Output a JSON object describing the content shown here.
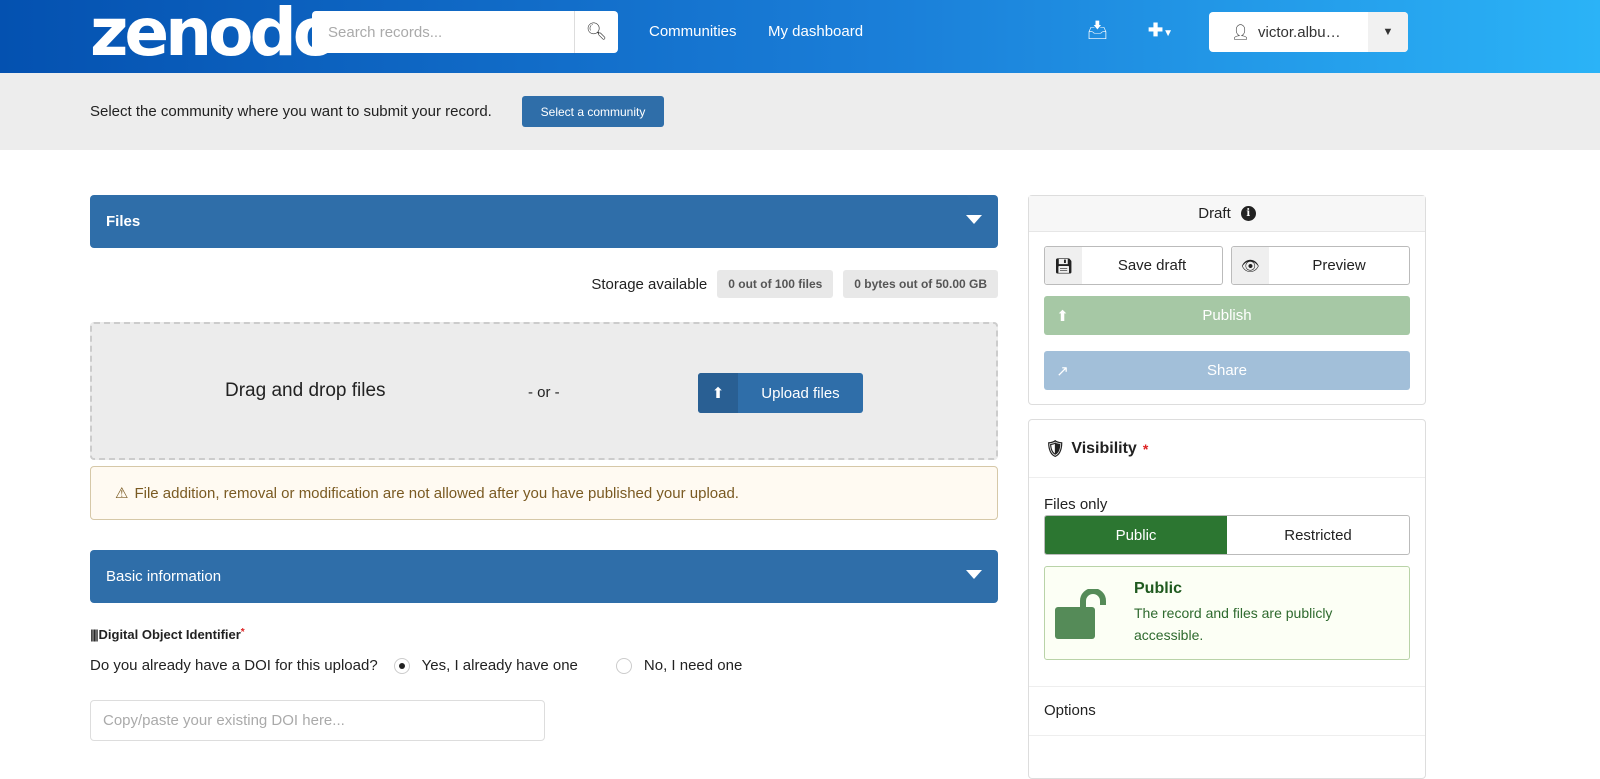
{
  "nav": {
    "logo": "zenodo",
    "search_placeholder": "Search records...",
    "links": [
      "Communities",
      "My dashboard"
    ],
    "user": "victor.albu…",
    "icons": [
      "search-icon",
      "inbox-icon",
      "plus-icon",
      "user-icon",
      "caret-down-icon"
    ]
  },
  "community": {
    "text": "Select the community where you want to submit your record.",
    "button": "Select a community"
  },
  "files": {
    "title": "Files",
    "storage_label": "Storage available",
    "files_badge": "0 out of 100 files",
    "bytes_badge": "0 bytes out of 50.00 GB",
    "drag_text": "Drag and drop files",
    "or_text": "- or -",
    "upload_button": "Upload files",
    "warning": "File addition, removal or modification are not allowed after you have published your upload."
  },
  "basic": {
    "title": "Basic information",
    "doi_label": "Digital Object Identifier",
    "required": "*",
    "question": "Do you already have a DOI for this upload?",
    "option_yes": "Yes, I already have one",
    "option_no": "No, I need one",
    "selected": "yes",
    "doi_placeholder": "Copy/paste your existing DOI here..."
  },
  "draft": {
    "title": "Draft",
    "save": "Save draft",
    "preview": "Preview",
    "publish": "Publish",
    "share": "Share"
  },
  "visibility": {
    "title": "Visibility",
    "required": "*",
    "files_only": "Files only",
    "public": "Public",
    "restricted": "Restricted",
    "selected": "Public",
    "box_title": "Public",
    "box_text": "The record and files are publicly accessible.",
    "options": "Options"
  },
  "colors": {
    "primary": "#2f6ea9",
    "public_green": "#2c7631",
    "publish_disabled": "#a6c8a5",
    "share_disabled": "#a2bfd9"
  }
}
